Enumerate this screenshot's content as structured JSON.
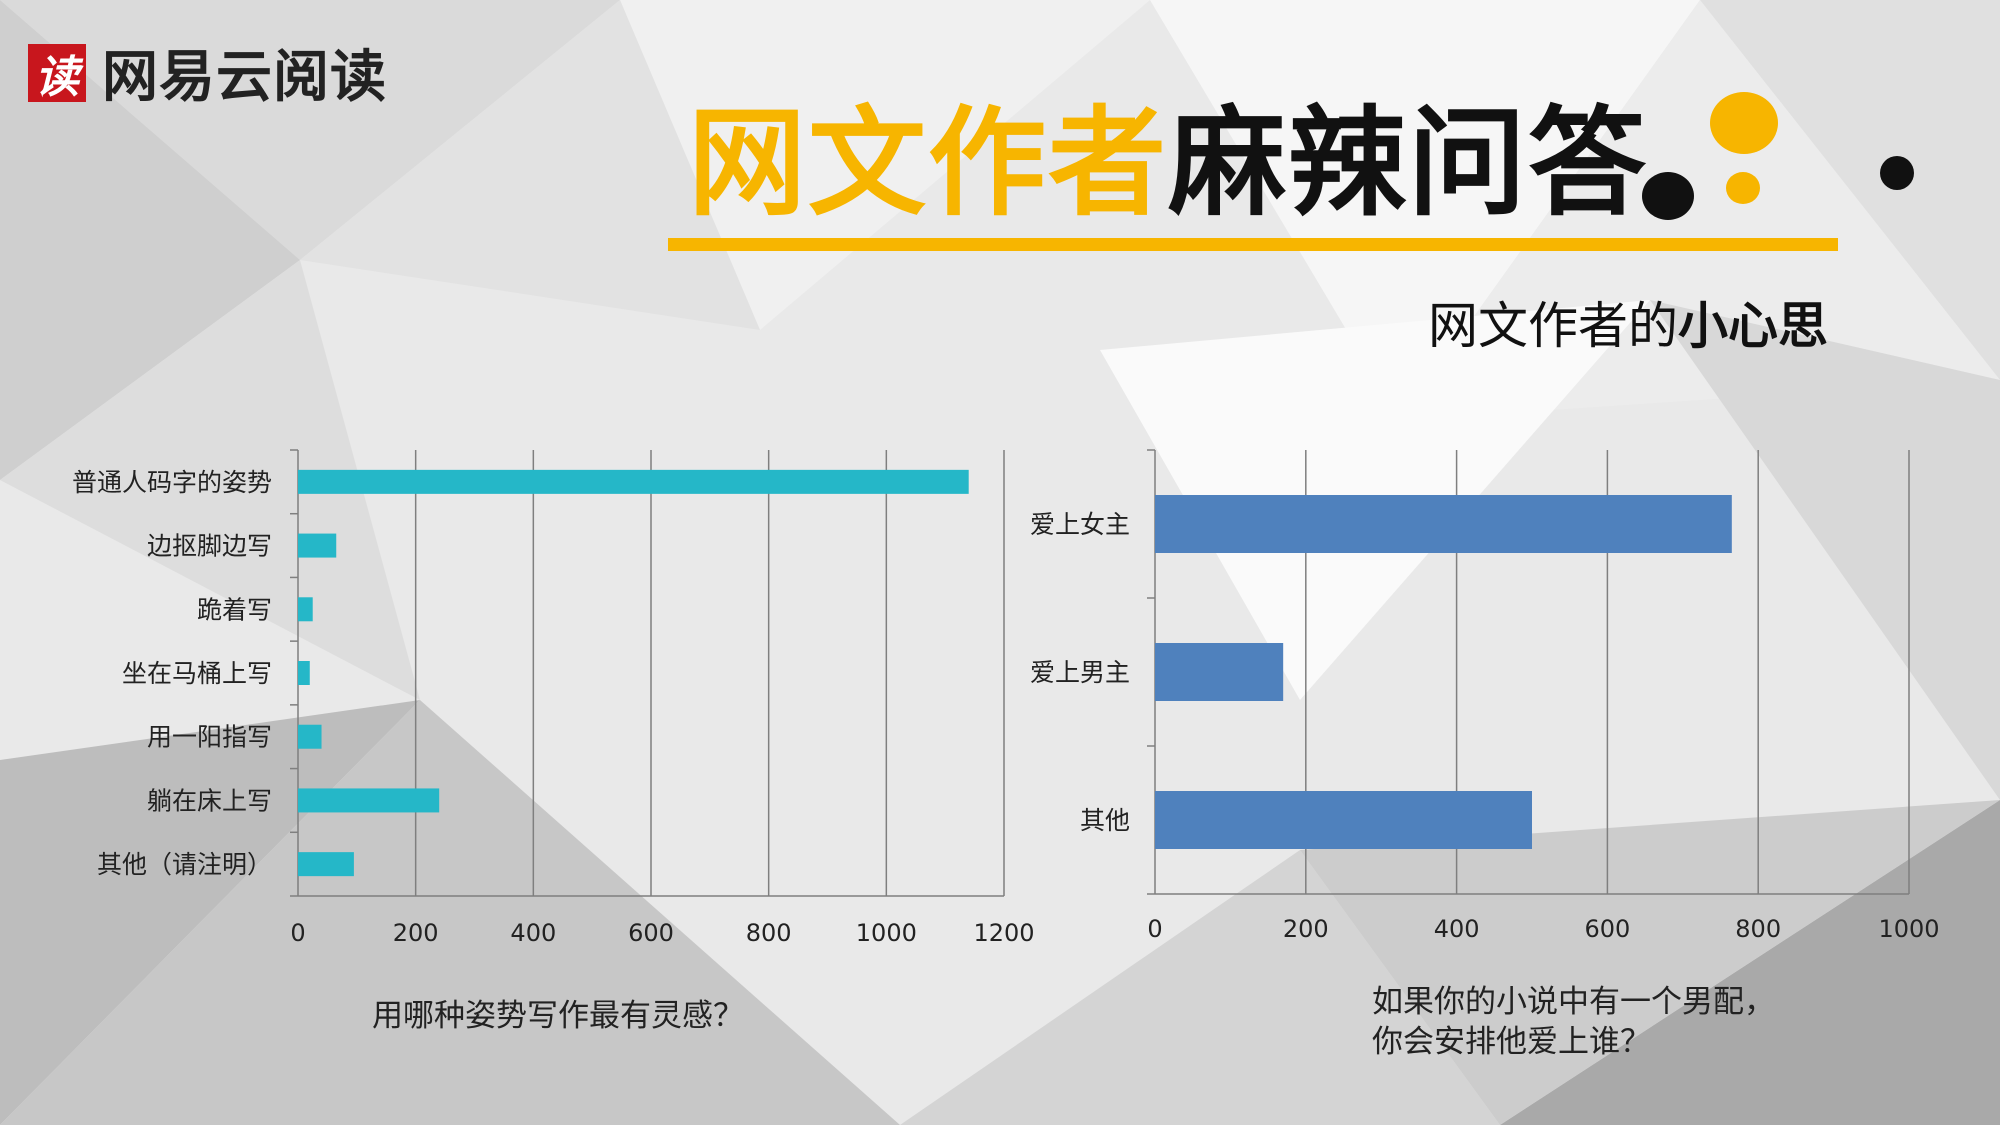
{
  "brand": {
    "name": "网易云阅读",
    "mark": "读"
  },
  "title": {
    "highlight": "网文作者",
    "rest": "麻辣问答"
  },
  "subtitle": {
    "normal": "网文作者的",
    "bold": "小心思"
  },
  "colors": {
    "accent": "#f7b500",
    "bar_left": "#25b7c8",
    "bar_right": "#4f81bd"
  },
  "chart_data": [
    {
      "type": "bar",
      "orientation": "horizontal",
      "categories": [
        "普通人码字的姿势",
        "边抠脚边写",
        "跪着写",
        "坐在马桶上写",
        "用一阳指写",
        "躺在床上写",
        "其他（请注明）"
      ],
      "values": [
        1140,
        65,
        25,
        20,
        40,
        240,
        95
      ],
      "xlim": [
        0,
        1200
      ],
      "ticks": [
        0,
        200,
        400,
        600,
        800,
        1000,
        1200
      ],
      "grid": true,
      "caption": "用哪种姿势写作最有灵感？"
    },
    {
      "type": "bar",
      "orientation": "horizontal",
      "categories": [
        "爱上女主",
        "爱上男主",
        "其他"
      ],
      "values": [
        765,
        170,
        500
      ],
      "xlim": [
        0,
        1000
      ],
      "ticks": [
        0,
        200,
        400,
        600,
        800,
        1000
      ],
      "grid": true,
      "caption_lines": [
        "如果你的小说中有一个男配，",
        "你会安排他爱上谁？"
      ]
    }
  ]
}
